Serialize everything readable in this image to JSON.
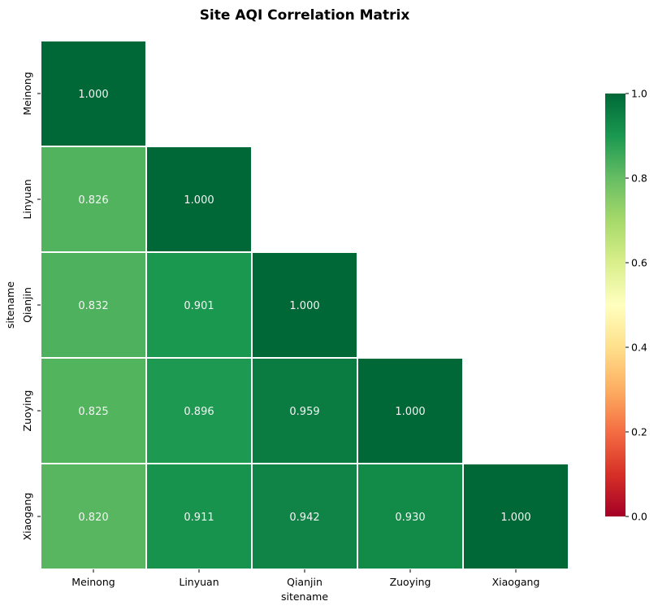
{
  "chart_data": {
    "type": "heatmap",
    "title": "Site AQI Correlation Matrix",
    "xlabel": "sitename",
    "ylabel": "sitename",
    "x_categories": [
      "Meinong",
      "Linyuan",
      "Qianjin",
      "Zuoying",
      "Xiaogang"
    ],
    "y_categories": [
      "Meinong",
      "Linyuan",
      "Qianjin",
      "Zuoying",
      "Xiaogang"
    ],
    "mask": "upper-triangle",
    "matrix": [
      [
        1.0,
        null,
        null,
        null,
        null
      ],
      [
        0.826,
        1.0,
        null,
        null,
        null
      ],
      [
        0.832,
        0.901,
        1.0,
        null,
        null
      ],
      [
        0.825,
        0.896,
        0.959,
        1.0,
        null
      ],
      [
        0.82,
        0.911,
        0.942,
        0.93,
        1.0
      ]
    ],
    "annotation_format": "0.000",
    "colormap": "RdYlGn",
    "vmin": 0.0,
    "vmax": 1.0,
    "colorbar_ticks": [
      "0.0",
      "0.2",
      "0.4",
      "0.6",
      "0.8",
      "1.0"
    ],
    "cell_border_color": "#ffffff",
    "annotation_color": "#f4f4f4"
  }
}
